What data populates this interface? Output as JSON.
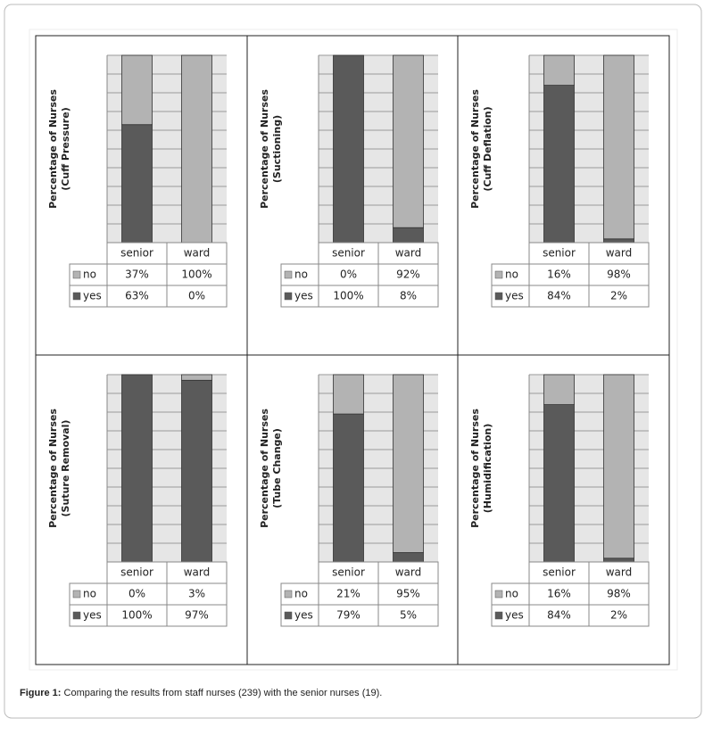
{
  "chart_data": [
    {
      "type": "bar",
      "stacked": true,
      "ylabel": [
        "Percentage of Nurses",
        "(Cuff Pressure)"
      ],
      "categories": [
        "senior",
        "ward"
      ],
      "series": [
        {
          "name": "no",
          "color": "#b3b3b3",
          "values": [
            37,
            100
          ],
          "value_labels": [
            "37%",
            "100%"
          ]
        },
        {
          "name": "yes",
          "color": "#5a5a5a",
          "values": [
            63,
            0
          ],
          "value_labels": [
            "63%",
            "0%"
          ]
        }
      ],
      "ylim": [
        0,
        100
      ],
      "yticks": [
        0,
        10,
        20,
        30,
        40,
        50,
        60,
        70,
        80,
        90,
        100
      ],
      "grid": true
    },
    {
      "type": "bar",
      "stacked": true,
      "ylabel": [
        "Percentage of Nurses",
        "(Suctioning)"
      ],
      "categories": [
        "senior",
        "ward"
      ],
      "series": [
        {
          "name": "no",
          "color": "#b3b3b3",
          "values": [
            0,
            92
          ],
          "value_labels": [
            "0%",
            "92%"
          ]
        },
        {
          "name": "yes",
          "color": "#5a5a5a",
          "values": [
            100,
            8
          ],
          "value_labels": [
            "100%",
            "8%"
          ]
        }
      ],
      "ylim": [
        0,
        100
      ],
      "yticks": [
        0,
        10,
        20,
        30,
        40,
        50,
        60,
        70,
        80,
        90,
        100
      ],
      "grid": true
    },
    {
      "type": "bar",
      "stacked": true,
      "ylabel": [
        "Percentage of Nurses",
        "(Cuff Deflation)"
      ],
      "categories": [
        "senior",
        "ward"
      ],
      "series": [
        {
          "name": "no",
          "color": "#b3b3b3",
          "values": [
            16,
            98
          ],
          "value_labels": [
            "16%",
            "98%"
          ]
        },
        {
          "name": "yes",
          "color": "#5a5a5a",
          "values": [
            84,
            2
          ],
          "value_labels": [
            "84%",
            "2%"
          ]
        }
      ],
      "ylim": [
        0,
        100
      ],
      "yticks": [
        0,
        10,
        20,
        30,
        40,
        50,
        60,
        70,
        80,
        90,
        100
      ],
      "grid": true
    },
    {
      "type": "bar",
      "stacked": true,
      "ylabel": [
        "Percentage of Nurses",
        "(Suture Removal)"
      ],
      "categories": [
        "senior",
        "ward"
      ],
      "series": [
        {
          "name": "no",
          "color": "#b3b3b3",
          "values": [
            0,
            3
          ],
          "value_labels": [
            "0%",
            "3%"
          ]
        },
        {
          "name": "yes",
          "color": "#5a5a5a",
          "values": [
            100,
            97
          ],
          "value_labels": [
            "100%",
            "97%"
          ]
        }
      ],
      "ylim": [
        0,
        100
      ],
      "yticks": [
        0,
        10,
        20,
        30,
        40,
        50,
        60,
        70,
        80,
        90,
        100
      ],
      "grid": true
    },
    {
      "type": "bar",
      "stacked": true,
      "ylabel": [
        "Percentage of Nurses",
        "(Tube Change)"
      ],
      "categories": [
        "senior",
        "ward"
      ],
      "series": [
        {
          "name": "no",
          "color": "#b3b3b3",
          "values": [
            21,
            95
          ],
          "value_labels": [
            "21%",
            "95%"
          ]
        },
        {
          "name": "yes",
          "color": "#5a5a5a",
          "values": [
            79,
            5
          ],
          "value_labels": [
            "79%",
            "5%"
          ]
        }
      ],
      "ylim": [
        0,
        100
      ],
      "yticks": [
        0,
        10,
        20,
        30,
        40,
        50,
        60,
        70,
        80,
        90,
        100
      ],
      "grid": true
    },
    {
      "type": "bar",
      "stacked": true,
      "ylabel": [
        "Percentage of  Nurses",
        "(Humidification)"
      ],
      "categories": [
        "senior",
        "ward"
      ],
      "series": [
        {
          "name": "no",
          "color": "#b3b3b3",
          "values": [
            16,
            98
          ],
          "value_labels": [
            "16%",
            "98%"
          ]
        },
        {
          "name": "yes",
          "color": "#5a5a5a",
          "values": [
            84,
            2
          ],
          "value_labels": [
            "84%",
            "2%"
          ]
        }
      ],
      "ylim": [
        0,
        100
      ],
      "yticks": [
        0,
        10,
        20,
        30,
        40,
        50,
        60,
        70,
        80,
        90,
        100
      ],
      "grid": true
    }
  ],
  "caption": {
    "label": "Figure 1:",
    "text": " Comparing the results from staff nurses (239) with the senior nurses (19)."
  }
}
